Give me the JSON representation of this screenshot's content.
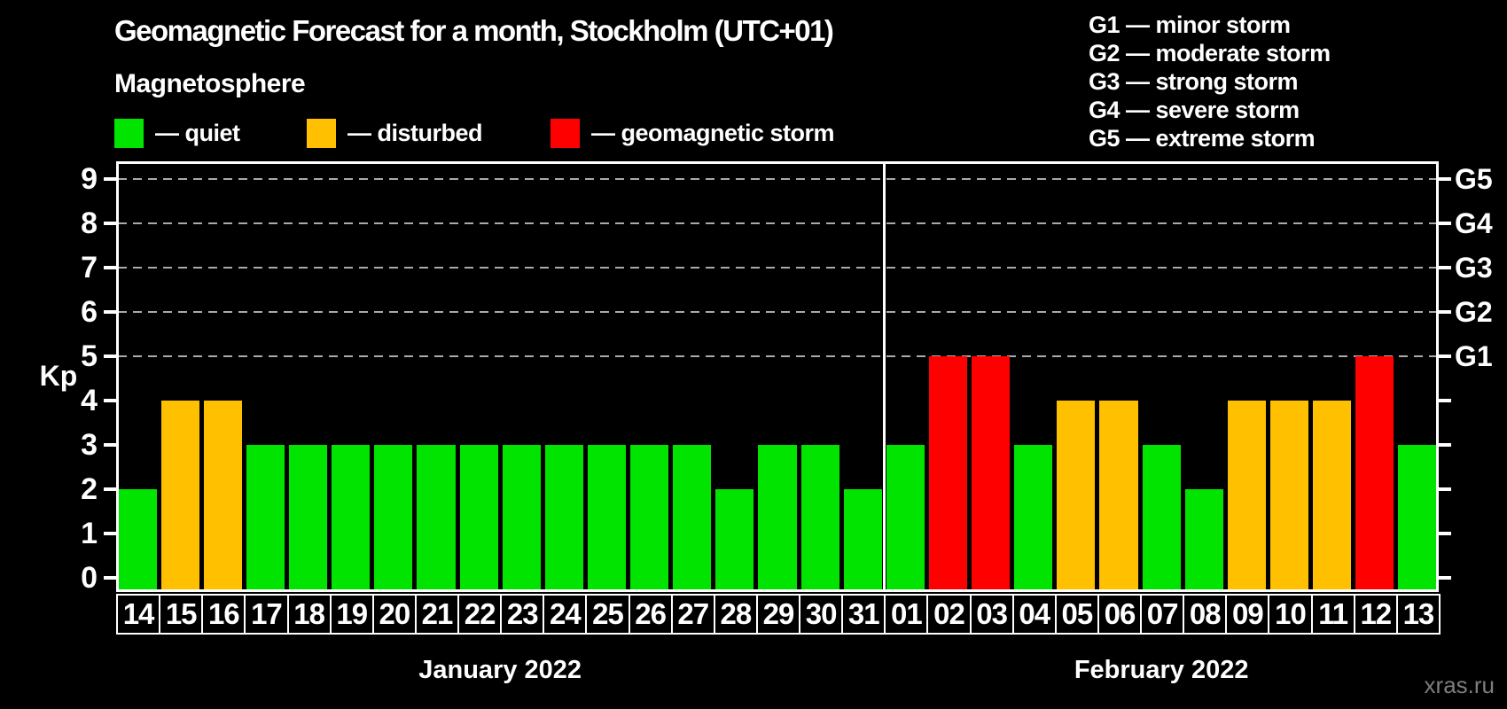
{
  "title": "Geomagnetic Forecast for a month, Stockholm (UTC+01)",
  "subtitle": "Magnetosphere",
  "dash": "—",
  "legend": {
    "items": [
      {
        "label": "quiet",
        "state": "quiet",
        "color": "#00e400"
      },
      {
        "label": "disturbed",
        "state": "disturbed",
        "color": "#ffc000"
      },
      {
        "label": "geomagnetic storm",
        "state": "storm",
        "color": "#ff0000"
      }
    ]
  },
  "g_legend": [
    {
      "code": "G1",
      "desc": "minor storm"
    },
    {
      "code": "G2",
      "desc": "moderate storm"
    },
    {
      "code": "G3",
      "desc": "strong storm"
    },
    {
      "code": "G4",
      "desc": "severe storm"
    },
    {
      "code": "G5",
      "desc": "extreme storm"
    }
  ],
  "watermark": "xras.ru",
  "chart_data": {
    "type": "bar",
    "title": "Geomagnetic Forecast for a month, Stockholm (UTC+01)",
    "ylabel": "Kp",
    "ylim": [
      0,
      9
    ],
    "yticks": [
      0,
      1,
      2,
      3,
      4,
      5,
      6,
      7,
      8,
      9
    ],
    "gridline_levels": [
      5,
      6,
      7,
      8,
      9
    ],
    "grid": "dashed",
    "legend_position": "top",
    "right_axis": [
      {
        "label": "G1",
        "value": 5
      },
      {
        "label": "G2",
        "value": 6
      },
      {
        "label": "G3",
        "value": 7
      },
      {
        "label": "G4",
        "value": 8
      },
      {
        "label": "G5",
        "value": 9
      }
    ],
    "state_colors": {
      "quiet": "#00e400",
      "disturbed": "#ffc000",
      "storm": "#ff0000"
    },
    "months": [
      {
        "label": "January 2022",
        "days": [
          {
            "day": "14",
            "kp": 2,
            "state": "quiet"
          },
          {
            "day": "15",
            "kp": 4,
            "state": "disturbed"
          },
          {
            "day": "16",
            "kp": 4,
            "state": "disturbed"
          },
          {
            "day": "17",
            "kp": 3,
            "state": "quiet"
          },
          {
            "day": "18",
            "kp": 3,
            "state": "quiet"
          },
          {
            "day": "19",
            "kp": 3,
            "state": "quiet"
          },
          {
            "day": "20",
            "kp": 3,
            "state": "quiet"
          },
          {
            "day": "21",
            "kp": 3,
            "state": "quiet"
          },
          {
            "day": "22",
            "kp": 3,
            "state": "quiet"
          },
          {
            "day": "23",
            "kp": 3,
            "state": "quiet"
          },
          {
            "day": "24",
            "kp": 3,
            "state": "quiet"
          },
          {
            "day": "25",
            "kp": 3,
            "state": "quiet"
          },
          {
            "day": "26",
            "kp": 3,
            "state": "quiet"
          },
          {
            "day": "27",
            "kp": 3,
            "state": "quiet"
          },
          {
            "day": "28",
            "kp": 2,
            "state": "quiet"
          },
          {
            "day": "29",
            "kp": 3,
            "state": "quiet"
          },
          {
            "day": "30",
            "kp": 3,
            "state": "quiet"
          },
          {
            "day": "31",
            "kp": 2,
            "state": "quiet"
          }
        ]
      },
      {
        "label": "February 2022",
        "days": [
          {
            "day": "01",
            "kp": 3,
            "state": "quiet"
          },
          {
            "day": "02",
            "kp": 5,
            "state": "storm"
          },
          {
            "day": "03",
            "kp": 5,
            "state": "storm"
          },
          {
            "day": "04",
            "kp": 3,
            "state": "quiet"
          },
          {
            "day": "05",
            "kp": 4,
            "state": "disturbed"
          },
          {
            "day": "06",
            "kp": 4,
            "state": "disturbed"
          },
          {
            "day": "07",
            "kp": 3,
            "state": "quiet"
          },
          {
            "day": "08",
            "kp": 2,
            "state": "quiet"
          },
          {
            "day": "09",
            "kp": 4,
            "state": "disturbed"
          },
          {
            "day": "10",
            "kp": 4,
            "state": "disturbed"
          },
          {
            "day": "11",
            "kp": 4,
            "state": "disturbed"
          },
          {
            "day": "12",
            "kp": 5,
            "state": "storm"
          },
          {
            "day": "13",
            "kp": 3,
            "state": "quiet"
          }
        ]
      }
    ]
  }
}
